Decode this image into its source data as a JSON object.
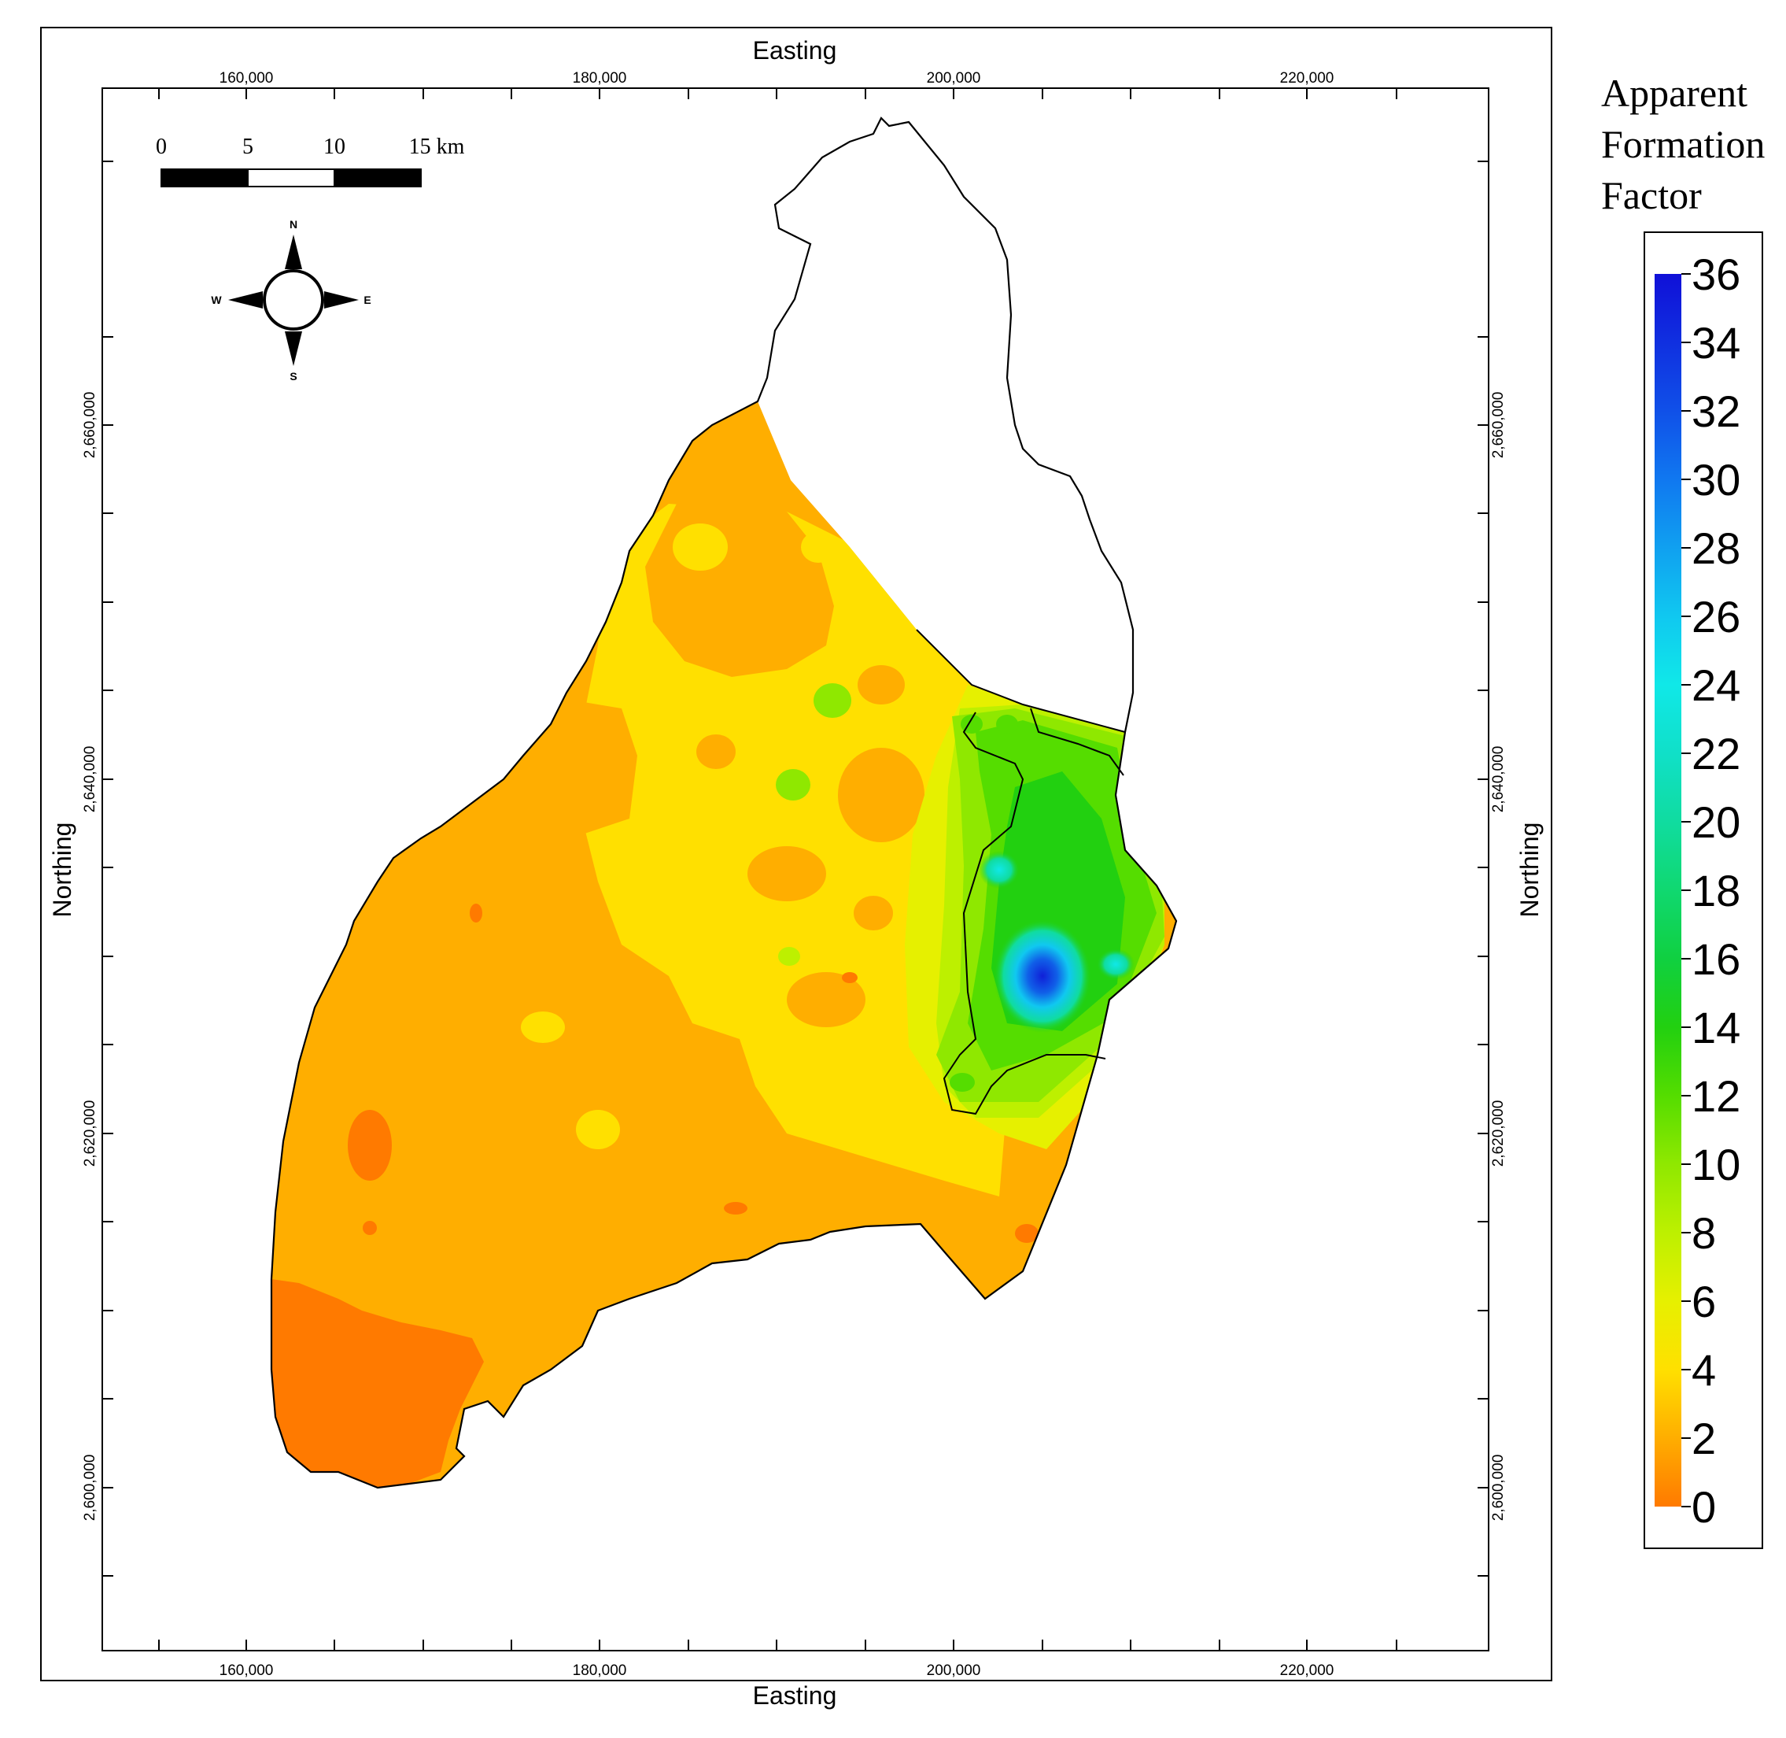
{
  "map": {
    "axis": {
      "x_label": "Easting",
      "y_label": "Northing",
      "x_ticks": [
        "160,000",
        "180,000",
        "200,000",
        "220,000"
      ],
      "y_ticks": [
        "2,660,000",
        "2,640,000",
        "2,620,000",
        "2,600,000"
      ]
    },
    "scale_bar": {
      "labels": [
        "0",
        "5",
        "10",
        "15 km"
      ]
    },
    "north_arrow": {
      "n": "N",
      "s": "S",
      "e": "E",
      "w": "W"
    }
  },
  "legend": {
    "title_lines": [
      "Apparent",
      "Formation",
      "Factor"
    ],
    "ticks": [
      "36",
      "34",
      "32",
      "30",
      "28",
      "26",
      "24",
      "22",
      "20",
      "18",
      "16",
      "14",
      "12",
      "10",
      "8",
      "6",
      "4",
      "2",
      "0"
    ],
    "colors": {
      "0": "#ff7a00",
      "2": "#ffae00",
      "4": "#ffe000",
      "6": "#e6f000",
      "8": "#bdf000",
      "10": "#8fe800",
      "12": "#55dd00",
      "14": "#22d010",
      "16": "#10d040",
      "18": "#10d870",
      "20": "#10dca0",
      "22": "#10e0c8",
      "24": "#10e8e8",
      "26": "#10c8f0",
      "28": "#10a0f0",
      "30": "#1078f0",
      "32": "#1050e8",
      "34": "#1030e0",
      "36": "#1010d8"
    }
  }
}
